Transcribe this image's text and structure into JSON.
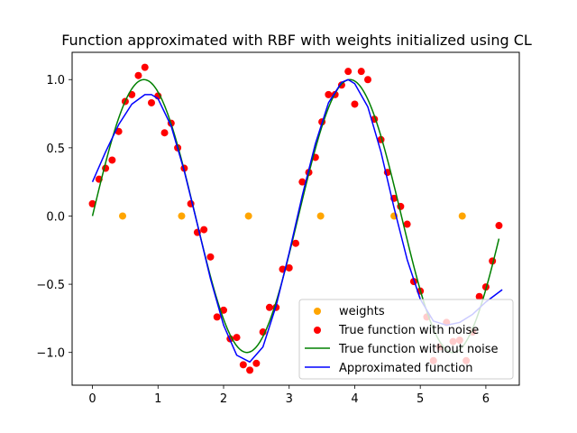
{
  "chart_data": {
    "type": "scatter",
    "title": "Function approximated with RBF with weights initialized using CL",
    "xlabel": "",
    "ylabel": "",
    "xlim": [
      -0.31,
      6.51
    ],
    "ylim": [
      -1.24,
      1.2
    ],
    "xticks": [
      0,
      1,
      2,
      3,
      4,
      5,
      6
    ],
    "yticks": [
      -1.0,
      -0.5,
      0.0,
      0.5,
      1.0
    ],
    "ytick_labels": [
      "−1.0",
      "−0.5",
      "0.0",
      "0.5",
      "1.0"
    ],
    "grid": false,
    "legend_position": "lower-right",
    "series": [
      {
        "name": "weights",
        "kind": "scatter",
        "color": "#ffa500",
        "x": [
          0.46,
          1.36,
          2.38,
          3.48,
          4.6,
          5.64
        ],
        "y": [
          0,
          0,
          0,
          0,
          0,
          0
        ]
      },
      {
        "name": "True function with noise",
        "kind": "scatter",
        "color": "#ff0000",
        "x": [
          0.0,
          0.1,
          0.2,
          0.3,
          0.4,
          0.5,
          0.6,
          0.7,
          0.8,
          0.9,
          1.0,
          1.1,
          1.2,
          1.3,
          1.4,
          1.5,
          1.6,
          1.7,
          1.8,
          1.9,
          2.0,
          2.1,
          2.2,
          2.3,
          2.4,
          2.5,
          2.6,
          2.7,
          2.8,
          2.9,
          3.0,
          3.1,
          3.2,
          3.3,
          3.4,
          3.5,
          3.6,
          3.7,
          3.8,
          3.9,
          4.0,
          4.1,
          4.2,
          4.3,
          4.4,
          4.5,
          4.6,
          4.7,
          4.8,
          4.9,
          5.0,
          5.1,
          5.2,
          5.3,
          5.4,
          5.5,
          5.6,
          5.7,
          5.8,
          5.9,
          6.0,
          6.1,
          6.2
        ],
        "y": [
          0.09,
          0.27,
          0.35,
          0.41,
          0.62,
          0.84,
          0.89,
          1.03,
          1.09,
          0.83,
          0.88,
          0.61,
          0.68,
          0.5,
          0.35,
          0.09,
          -0.12,
          -0.1,
          -0.3,
          -0.74,
          -0.69,
          -0.9,
          -0.89,
          -1.09,
          -1.13,
          -1.08,
          -0.85,
          -0.67,
          -0.67,
          -0.39,
          -0.38,
          -0.2,
          0.25,
          0.32,
          0.43,
          0.69,
          0.89,
          0.89,
          0.96,
          1.06,
          0.82,
          1.06,
          1.0,
          0.71,
          0.56,
          0.32,
          0.13,
          0.07,
          -0.06,
          -0.48,
          -0.55,
          -0.74,
          -1.06,
          -0.96,
          -0.78,
          -0.92,
          -0.91,
          -1.06,
          -0.85,
          -0.59,
          -0.52,
          -0.33,
          -0.07
        ]
      },
      {
        "name": "True function without noise",
        "kind": "line",
        "color": "#008000",
        "function": "sin(2x)",
        "x_range": [
          0,
          6.2
        ]
      },
      {
        "name": "Approximated function",
        "kind": "line",
        "color": "#0000ff",
        "x": [
          0.0,
          0.2,
          0.4,
          0.6,
          0.8,
          0.9,
          1.0,
          1.2,
          1.4,
          1.6,
          1.8,
          2.0,
          2.2,
          2.4,
          2.6,
          2.8,
          3.0,
          3.2,
          3.4,
          3.6,
          3.8,
          3.9,
          4.0,
          4.2,
          4.4,
          4.6,
          4.8,
          5.0,
          5.2,
          5.4,
          5.6,
          5.8,
          6.0,
          6.25
        ],
        "y": [
          0.25,
          0.47,
          0.67,
          0.82,
          0.89,
          0.89,
          0.86,
          0.66,
          0.33,
          -0.06,
          -0.46,
          -0.8,
          -1.02,
          -1.07,
          -0.96,
          -0.66,
          -0.27,
          0.15,
          0.53,
          0.83,
          0.98,
          1.0,
          0.97,
          0.8,
          0.47,
          0.06,
          -0.32,
          -0.61,
          -0.77,
          -0.8,
          -0.78,
          -0.72,
          -0.63,
          -0.54
        ]
      }
    ]
  }
}
